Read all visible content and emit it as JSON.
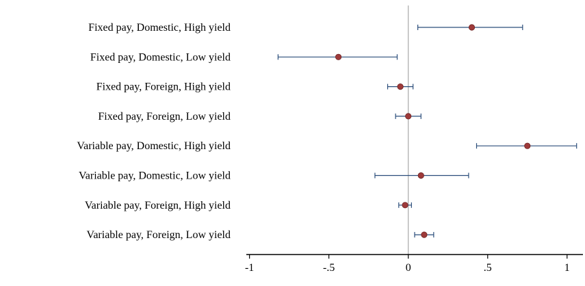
{
  "chart_data": {
    "type": "scatter",
    "subtype": "coefficient-plot",
    "title": "",
    "xlabel": "",
    "ylabel": "",
    "xlim": [
      -1.02,
      1.1
    ],
    "xticks": [
      -1,
      -0.5,
      0,
      0.5,
      1
    ],
    "xtick_labels": [
      "-1",
      "-.5",
      "0",
      ".5",
      "1"
    ],
    "reference_line_x": 0,
    "grid": false,
    "legend": "none",
    "colors": {
      "point": "#9e3a3a",
      "point_stroke": "#6e2424",
      "error_bar": "#2a4d7a",
      "reference_line": "#a8a8a8",
      "axis": "#000000"
    },
    "categories": [
      "Fixed pay, Domestic, High yield",
      "Fixed pay, Domestic, Low yield",
      "Fixed pay, Foreign, High yield",
      "Fixed pay, Foreign, Low yield",
      "Variable pay, Domestic, High yield",
      "Variable pay, Domestic, Low yield",
      "Variable pay, Foreign, High yield",
      "Variable pay, Foreign, Low yield"
    ],
    "estimates": [
      0.4,
      -0.44,
      -0.05,
      0.0,
      0.75,
      0.08,
      -0.02,
      0.1
    ],
    "ci_low": [
      0.06,
      -0.82,
      -0.13,
      -0.08,
      0.43,
      -0.21,
      -0.06,
      0.04
    ],
    "ci_high": [
      0.72,
      -0.07,
      0.03,
      0.08,
      1.06,
      0.38,
      0.02,
      0.16
    ]
  }
}
